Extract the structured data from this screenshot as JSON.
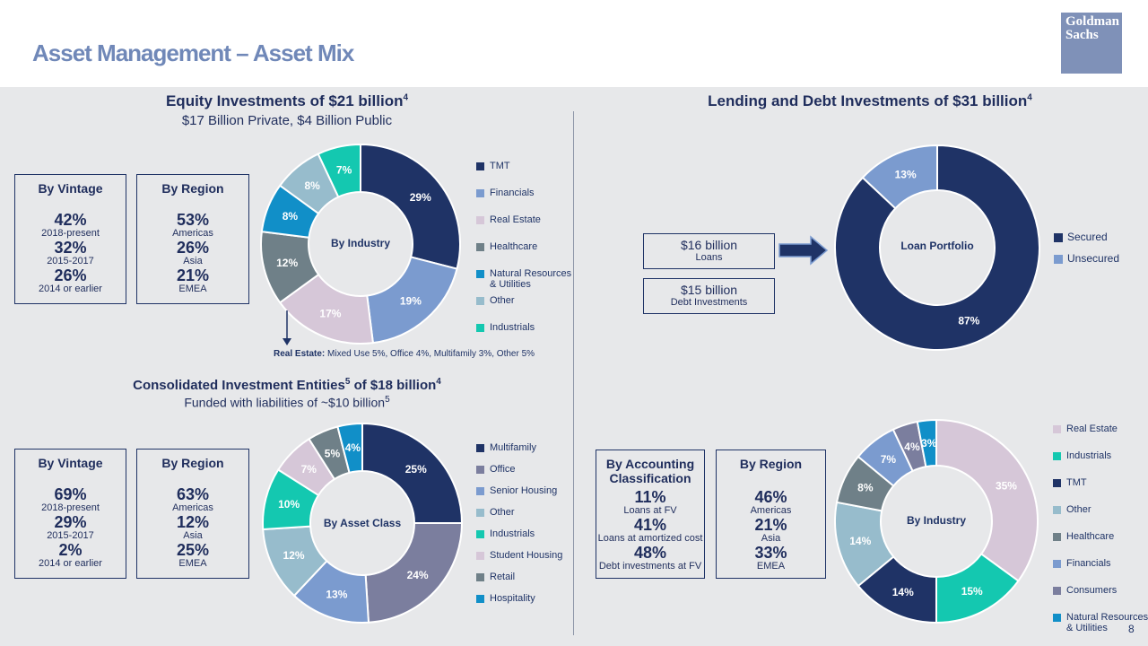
{
  "header": {
    "title": "Asset Management – Asset Mix",
    "logo_text": "Goldman Sachs"
  },
  "equity": {
    "title": "Equity Investments of $21 billion",
    "title_sup": "4",
    "subtitle": "$17 Billion Private, $4 Billion Public",
    "vintage": {
      "header": "By Vintage",
      "items": [
        {
          "value": "42%",
          "label": "2018-present"
        },
        {
          "value": "32%",
          "label": "2015-2017"
        },
        {
          "value": "26%",
          "label": "2014 or earlier"
        }
      ]
    },
    "region": {
      "header": "By Region",
      "items": [
        {
          "value": "53%",
          "label": "Americas"
        },
        {
          "value": "26%",
          "label": "Asia"
        },
        {
          "value": "21%",
          "label": "EMEA"
        }
      ]
    },
    "center_label": "By Industry",
    "note_bold": "Real Estate:",
    "note_rest": " Mixed Use 5%, Office 4%, Multifamily 3%, Other 5%"
  },
  "consolidated": {
    "title": "Consolidated Investment Entities",
    "title_sup1": "5",
    "title_mid": " of $18 billion",
    "title_sup2": "4",
    "subtitle": "Funded with liabilities of ~$10 billion",
    "subtitle_sup": "5",
    "vintage": {
      "header": "By Vintage",
      "items": [
        {
          "value": "69%",
          "label": "2018-present"
        },
        {
          "value": "29%",
          "label": "2015-2017"
        },
        {
          "value": "2%",
          "label": "2014 or earlier"
        }
      ]
    },
    "region": {
      "header": "By Region",
      "items": [
        {
          "value": "63%",
          "label": "Americas"
        },
        {
          "value": "12%",
          "label": "Asia"
        },
        {
          "value": "25%",
          "label": "EMEA"
        }
      ]
    },
    "center_label": "By Asset Class"
  },
  "lending": {
    "title": "Lending and Debt Investments of $31 billion",
    "title_sup": "4",
    "loans": {
      "value": "$16 billion",
      "label": "Loans"
    },
    "debt": {
      "value": "$15 billion",
      "label": "Debt Investments"
    },
    "center_label": "Loan Portfolio",
    "accounting": {
      "header": "By Accounting Classification",
      "items": [
        {
          "value": "11%",
          "label": "Loans at FV"
        },
        {
          "value": "41%",
          "label": "Loans at amortized cost"
        },
        {
          "value": "48%",
          "label": "Debt investments at FV"
        }
      ]
    },
    "region": {
      "header": "By Region",
      "items": [
        {
          "value": "46%",
          "label": "Americas"
        },
        {
          "value": "21%",
          "label": "Asia"
        },
        {
          "value": "33%",
          "label": "EMEA"
        }
      ]
    },
    "industry_center_label": "By Industry"
  },
  "page_number": "8",
  "colors": {
    "arrow": "#1f3366",
    "divider": "#8e96a8"
  },
  "chart_data": [
    {
      "type": "pie",
      "title": "Equity Investments – By Industry",
      "categories": [
        "TMT",
        "Financials",
        "Real Estate",
        "Healthcare",
        "Natural Resources & Utilities",
        "Other",
        "Industrials"
      ],
      "values": [
        29,
        19,
        17,
        12,
        8,
        8,
        7
      ],
      "labels": [
        "29%",
        "19%",
        "17%",
        "12%",
        "8%",
        "8%",
        "7%"
      ],
      "colors": [
        "#1f3366",
        "#7b9bcf",
        "#d6c7d8",
        "#6f8088",
        "#118fc8",
        "#97bccc",
        "#14c8b0"
      ],
      "label_colors": [
        "#ffffff",
        "#ffffff",
        "#ffffff",
        "#ffffff",
        "#ffffff",
        "#ffffff",
        "#ffffff"
      ],
      "legend_placement": "right"
    },
    {
      "type": "pie",
      "title": "Consolidated Investment Entities – By Asset Class",
      "categories": [
        "Multifamily",
        "Office",
        "Senior Housing",
        "Other",
        "Industrials",
        "Student Housing",
        "Retail",
        "Hospitality"
      ],
      "values": [
        25,
        24,
        13,
        12,
        10,
        7,
        5,
        4
      ],
      "labels": [
        "25%",
        "24%",
        "13%",
        "12%",
        "10%",
        "7%",
        "5%",
        "4%"
      ],
      "colors": [
        "#1f3366",
        "#7b7e9e",
        "#7b9bcf",
        "#97bccc",
        "#14c8b0",
        "#d6c7d8",
        "#6f8088",
        "#118fc8"
      ],
      "label_colors": [
        "#ffffff",
        "#ffffff",
        "#ffffff",
        "#ffffff",
        "#ffffff",
        "#ffffff",
        "#ffffff",
        "#ffffff"
      ],
      "legend_placement": "right"
    },
    {
      "type": "pie",
      "title": "Loan Portfolio",
      "categories": [
        "Secured",
        "Unsecured"
      ],
      "values": [
        87,
        13
      ],
      "labels": [
        "87%",
        "13%"
      ],
      "colors": [
        "#1f3366",
        "#7b9bcf"
      ],
      "label_colors": [
        "#ffffff",
        "#ffffff"
      ],
      "legend_placement": "right"
    },
    {
      "type": "pie",
      "title": "Lending and Debt Investments – By Industry",
      "categories": [
        "Real Estate",
        "Industrials",
        "TMT",
        "Other",
        "Healthcare",
        "Financials",
        "Consumers",
        "Natural Resources & Utilities"
      ],
      "values": [
        35,
        15,
        14,
        14,
        8,
        7,
        4,
        3
      ],
      "labels": [
        "35%",
        "15%",
        "14%",
        "14%",
        "8%",
        "7%",
        "4%",
        "3%"
      ],
      "colors": [
        "#d6c7d8",
        "#14c8b0",
        "#1f3366",
        "#97bccc",
        "#6f8088",
        "#7b9bcf",
        "#7b7e9e",
        "#118fc8"
      ],
      "label_colors": [
        "#ffffff",
        "#ffffff",
        "#ffffff",
        "#ffffff",
        "#ffffff",
        "#ffffff",
        "#ffffff",
        "#ffffff"
      ],
      "legend_placement": "right"
    }
  ]
}
